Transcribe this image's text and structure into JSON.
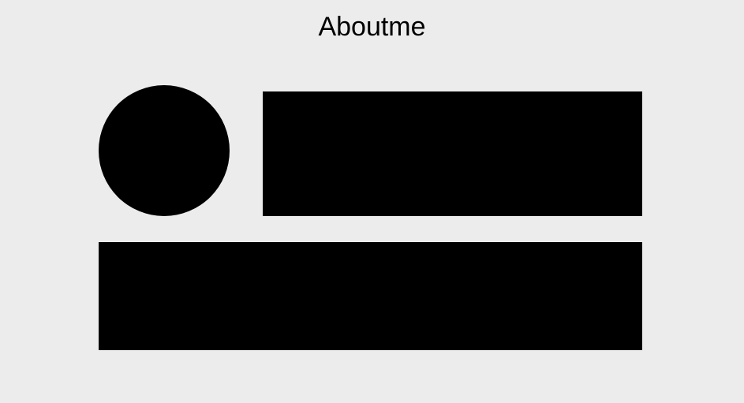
{
  "page": {
    "title": "Aboutme"
  },
  "colors": {
    "background": "#ececec",
    "placeholder_fill": "#000000",
    "text": "#000000"
  }
}
